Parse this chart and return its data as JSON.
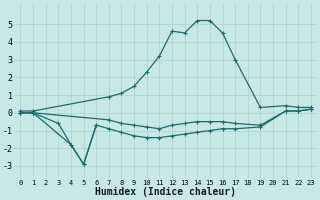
{
  "xlabel": "Humidex (Indice chaleur)",
  "background_color": "#c8e8e8",
  "grid_color": "#b0d4d4",
  "line_color": "#1a6b6b",
  "xlim": [
    -0.5,
    23.5
  ],
  "ylim": [
    -3.7,
    6.2
  ],
  "yticks": [
    -3,
    -2,
    -1,
    0,
    1,
    2,
    3,
    4,
    5
  ],
  "xticks": [
    0,
    1,
    2,
    3,
    4,
    5,
    6,
    7,
    8,
    9,
    10,
    11,
    12,
    13,
    14,
    15,
    16,
    17,
    18,
    19,
    20,
    21,
    22,
    23
  ],
  "series": [
    {
      "x": [
        0,
        1,
        7,
        8,
        9,
        10,
        11,
        12,
        13,
        14,
        15,
        16,
        17,
        19,
        21,
        22,
        23
      ],
      "y": [
        0.1,
        0.1,
        0.9,
        1.1,
        1.5,
        2.3,
        3.2,
        4.6,
        4.5,
        5.2,
        5.2,
        4.5,
        3.0,
        0.3,
        0.4,
        0.3,
        0.3
      ]
    },
    {
      "x": [
        0,
        1,
        7,
        8,
        9,
        10,
        11,
        12,
        13,
        14,
        15,
        16,
        17,
        19,
        21,
        22,
        23
      ],
      "y": [
        0.0,
        0.0,
        -0.4,
        -0.6,
        -0.7,
        -0.8,
        -0.9,
        -0.7,
        -0.6,
        -0.5,
        -0.5,
        -0.5,
        -0.6,
        -0.7,
        0.1,
        0.1,
        0.2
      ]
    },
    {
      "x": [
        0,
        1,
        3,
        4,
        5,
        6
      ],
      "y": [
        0.0,
        0.0,
        -0.6,
        -1.8,
        -2.9,
        -0.7
      ]
    },
    {
      "x": [
        0,
        1,
        4,
        5,
        6,
        7,
        8,
        9,
        10,
        11,
        12,
        13,
        14,
        15,
        16,
        17,
        19,
        21,
        22,
        23
      ],
      "y": [
        0.0,
        0.0,
        -1.8,
        -2.9,
        -0.7,
        -0.9,
        -1.1,
        -1.3,
        -1.4,
        -1.4,
        -1.3,
        -1.2,
        -1.1,
        -1.0,
        -0.9,
        -0.9,
        -0.8,
        0.1,
        0.1,
        0.2
      ]
    }
  ]
}
